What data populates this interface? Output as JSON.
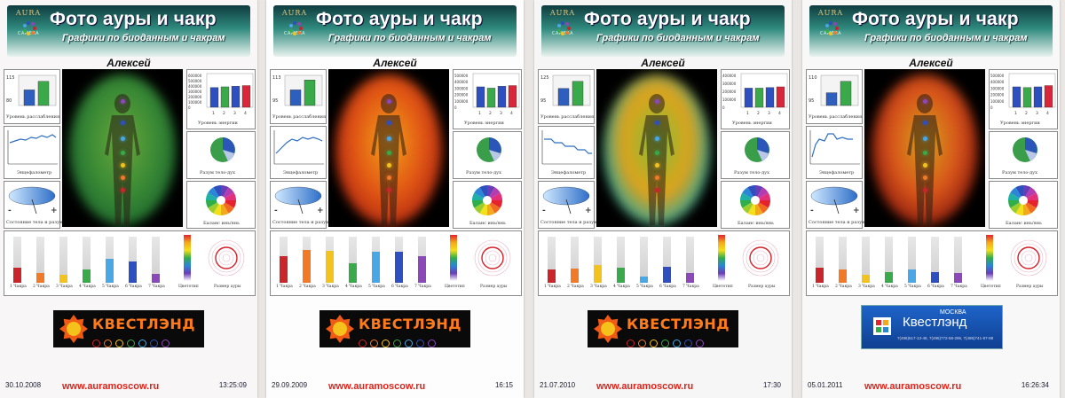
{
  "photos": [
    {
      "title": "Фото  ауры и чакр",
      "subtitle": "Графики по биоданным и чакрам",
      "aura_logo": "AURA",
      "camera_label": "CAMERA",
      "person_name": "Алексей",
      "labels": {
        "relax": "Уровень расслабления",
        "energy": "Уровень энергии",
        "encephalometer": "Энцефалометр",
        "balance_body_spirit": "Разум тело-дух",
        "state_body_mind": "Состояние тела и разума",
        "yin_yang": "Баланс инь/янь",
        "spectrum": "Цветотип",
        "aura_size": "Размер ауры",
        "minus": "-",
        "plus": "+"
      },
      "relax_values": {
        "ticks": [
          "115",
          "80"
        ],
        "bars": [
          0.55,
          0.85
        ]
      },
      "energy_values": {
        "ticks": [
          "600000",
          "500000",
          "400000",
          "300000",
          "200000",
          "100000",
          "0"
        ],
        "x_ticks": [
          "1",
          "2",
          "3",
          "4"
        ],
        "bars": [
          0.62,
          0.64,
          0.66,
          0.68
        ]
      },
      "chakra_labels": [
        "1 Чакра",
        "2 Чакра",
        "3 Чакра",
        "4 Чакра",
        "5 Чакра",
        "6 Чакра",
        "7 Чакра"
      ],
      "chakra_levels": [
        0.35,
        0.22,
        0.18,
        0.3,
        0.55,
        0.48,
        0.2
      ],
      "chakra_colors": [
        "#c8262b",
        "#f07a28",
        "#f2c21e",
        "#3aa94c",
        "#4aa7e6",
        "#2e4fbf",
        "#8b48b8"
      ],
      "aura_colors": [
        "#1f6b2f",
        "#3a8a35",
        "#6aa83a"
      ],
      "banner": {
        "type": "dark",
        "text": "КВЕСТЛЭНД"
      },
      "date": "30.10.2008",
      "url": "www.auramoscow.ru",
      "time": "13:25:09",
      "bg": "#f8f6f7"
    },
    {
      "title": "Фото  ауры и чакр",
      "subtitle": "Графики по биоданным и чакрам",
      "aura_logo": "AURA",
      "camera_label": "CAMERA",
      "person_name": "Алексей",
      "labels": {
        "relax": "Уровень расслабления",
        "energy": "Уровень энергии",
        "encephalometer": "Энцефалометр",
        "balance_body_spirit": "Разум тело-дух",
        "state_body_mind": "Состояние тела и разума",
        "yin_yang": "Баланс инь/янь",
        "spectrum": "Цветотип",
        "aura_size": "Размер ауры",
        "minus": "-",
        "plus": "+"
      },
      "relax_values": {
        "ticks": [
          "113",
          "95"
        ],
        "bars": [
          0.55,
          0.9
        ]
      },
      "energy_values": {
        "ticks": [
          "500000",
          "400000",
          "300000",
          "200000",
          "100000",
          "0"
        ],
        "x_ticks": [
          "1",
          "2",
          "3",
          "4"
        ],
        "bars": [
          0.64,
          0.6,
          0.66,
          0.68
        ]
      },
      "chakra_labels": [
        "1 Чакра",
        "2 Чакра",
        "3 Чакра",
        "4 Чакра",
        "5 Чакра",
        "6 Чакра",
        "7 Чакра"
      ],
      "chakra_levels": [
        0.6,
        0.75,
        0.72,
        0.45,
        0.7,
        0.7,
        0.6
      ],
      "chakra_colors": [
        "#c8262b",
        "#f07a28",
        "#f2c21e",
        "#3aa94c",
        "#4aa7e6",
        "#2e4fbf",
        "#8b48b8"
      ],
      "aura_colors": [
        "#b32a12",
        "#e25714",
        "#f2a21a"
      ],
      "banner": {
        "type": "dark",
        "text": "КВЕСТЛЭНД"
      },
      "date": "29.09.2009",
      "url": "www.auramoscow.ru",
      "time": "16:15",
      "bg": "#fdfdfd"
    },
    {
      "title": "Фото  ауры и чакр",
      "subtitle": "Графики по биоданным и чакрам",
      "aura_logo": "AURA",
      "camera_label": "CAMERA",
      "person_name": "Алексей",
      "labels": {
        "relax": "Уровень расслабления",
        "energy": "Уровень энергии",
        "encephalometer": "Энцефалометр",
        "balance_body_spirit": "Разум тело-дух",
        "state_body_mind": "Состояние тела и разума",
        "yin_yang": "Баланс инь/янь",
        "spectrum": "Цветотип",
        "aura_size": "Размер ауры",
        "minus": "-",
        "plus": "+"
      },
      "relax_values": {
        "ticks": [
          "125",
          "95"
        ],
        "bars": [
          0.6,
          0.85
        ]
      },
      "energy_values": {
        "ticks": [
          "400000",
          "300000",
          "200000",
          "100000",
          "0"
        ],
        "x_ticks": [
          "1",
          "2",
          "3",
          "4"
        ],
        "bars": [
          0.6,
          0.6,
          0.62,
          0.64
        ]
      },
      "chakra_labels": [
        "1 Чакра",
        "2 Чакра",
        "3 Чакра",
        "4 Чакра",
        "5 Чакра",
        "6 Чакра",
        "7 Чакра"
      ],
      "chakra_levels": [
        0.3,
        0.32,
        0.4,
        0.35,
        0.15,
        0.36,
        0.22
      ],
      "chakra_colors": [
        "#c8262b",
        "#f07a28",
        "#f2c21e",
        "#3aa94c",
        "#4aa7e6",
        "#2e4fbf",
        "#8b48b8"
      ],
      "aura_colors": [
        "#2aa7a0",
        "#e0a21a",
        "#7fbf3a"
      ],
      "banner": {
        "type": "dark",
        "text": "КВЕСТЛЭНД"
      },
      "date": "21.07.2010",
      "url": "www.auramoscow.ru",
      "time": "17:30",
      "bg": "#f6f6f6"
    },
    {
      "title": "Фото  ауры и чакр",
      "subtitle": "Графики по биоданным и чакрам",
      "aura_logo": "AURA",
      "camera_label": "CAMERA",
      "person_name": "Алексей",
      "labels": {
        "relax": "Уровень расслабления",
        "energy": "Уровень энергии",
        "encephalometer": "Энцефалометр",
        "balance_body_spirit": "Разум тело-дух",
        "state_body_mind": "Состояние тела и разума",
        "yin_yang": "Баланс инь/янь",
        "spectrum": "Цветотип",
        "aura_size": "Размер ауры",
        "minus": "-",
        "plus": "+"
      },
      "relax_values": {
        "ticks": [
          "110",
          "95"
        ],
        "bars": [
          0.45,
          0.85
        ]
      },
      "energy_values": {
        "ticks": [
          "500000",
          "400000",
          "300000",
          "200000",
          "100000",
          "0"
        ],
        "x_ticks": [
          "1",
          "2",
          "3",
          "4"
        ],
        "bars": [
          0.64,
          0.62,
          0.64,
          0.68
        ]
      },
      "chakra_labels": [
        "1 Чакра",
        "2 Чакра",
        "3 Чакра",
        "4 Чакра",
        "5 Чакра",
        "6 Чакра",
        "7 Чакра"
      ],
      "chakra_levels": [
        0.35,
        0.3,
        0.18,
        0.25,
        0.3,
        0.25,
        0.22
      ],
      "chakra_colors": [
        "#c8262b",
        "#f07a28",
        "#f2c21e",
        "#3aa94c",
        "#4aa7e6",
        "#2e4fbf",
        "#8b48b8"
      ],
      "aura_colors": [
        "#8a1c0e",
        "#d8541a",
        "#d6a01a"
      ],
      "banner": {
        "type": "blue",
        "moscow": "МОСКВА",
        "text": "Квестлэнд",
        "phones": "7(495)517-13-48, 7(495)772-58-296, 7(495)741-87-88"
      },
      "date": "05.01.2011",
      "url": "www.auramoscow.ru",
      "time": "16:26:34",
      "bg": "#f8f8f8"
    }
  ]
}
